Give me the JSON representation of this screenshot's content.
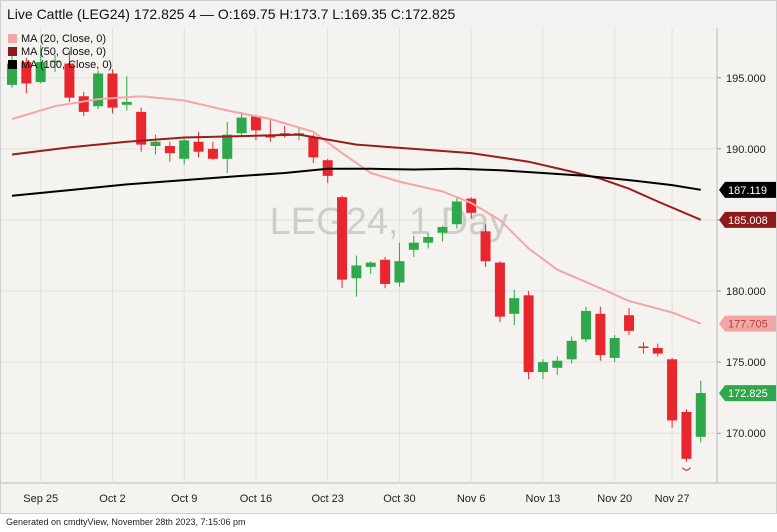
{
  "header": {
    "title": "Live Cattle (LEG24) 172.825 4 — O:169.75 H:173.7 L:169.35 C:172.825"
  },
  "footer": {
    "text": "Generated on cmdtyView, November 28th 2023, 7:15:06 pm"
  },
  "legend": [
    {
      "label": "MA (20, Close, 0)",
      "color": "#f2a6a6"
    },
    {
      "label": "MA (50, Close, 0)",
      "color": "#8b1a1a"
    },
    {
      "label": "MA (100, Close, 0)",
      "color": "#000000"
    }
  ],
  "colors": {
    "up": "#2ea84a",
    "down": "#e8262d",
    "ma20": "#f2a6a6",
    "ma50": "#9b1c1c",
    "ma100": "#000000",
    "background": "#f5f3ef"
  },
  "chart_data": {
    "type": "candlestick",
    "title": "Live Cattle (LEG24) 172.825 4 — O:169.75 H:173.7 L:169.35 C:172.825",
    "watermark": "LEG24, 1 Day",
    "ylim": [
      166.5,
      198.5
    ],
    "y_ticks": [
      "195.000",
      "190.000",
      "185.000",
      "180.000",
      "175.000",
      "170.000"
    ],
    "y_tick_values": [
      195,
      190,
      185,
      180,
      175,
      170
    ],
    "x_tick_labels": [
      {
        "label": "Sep 25",
        "index": 2
      },
      {
        "label": "Oct 2",
        "index": 7
      },
      {
        "label": "Oct 9",
        "index": 12
      },
      {
        "label": "Oct 16",
        "index": 17
      },
      {
        "label": "Oct 23",
        "index": 22
      },
      {
        "label": "Oct 30",
        "index": 27
      },
      {
        "label": "Nov 6",
        "index": 32
      },
      {
        "label": "Nov 13",
        "index": 37
      },
      {
        "label": "Nov 20",
        "index": 42
      },
      {
        "label": "Nov 27",
        "index": 46
      }
    ],
    "candles": [
      {
        "o": 194.5,
        "h": 197.0,
        "l": 194.3,
        "c": 196.0
      },
      {
        "o": 196.1,
        "h": 196.4,
        "l": 193.9,
        "c": 194.6
      },
      {
        "o": 194.7,
        "h": 197.3,
        "l": 194.6,
        "c": 196.1
      },
      {
        "o": 196.1,
        "h": 196.6,
        "l": 195.4,
        "c": 196.2
      },
      {
        "o": 196.0,
        "h": 196.9,
        "l": 193.3,
        "c": 193.6
      },
      {
        "o": 193.7,
        "h": 194.0,
        "l": 192.3,
        "c": 192.6
      },
      {
        "o": 193.0,
        "h": 195.5,
        "l": 192.8,
        "c": 195.3
      },
      {
        "o": 195.3,
        "h": 195.6,
        "l": 192.5,
        "c": 192.9
      },
      {
        "o": 193.1,
        "h": 195.1,
        "l": 192.7,
        "c": 193.3
      },
      {
        "o": 192.6,
        "h": 192.9,
        "l": 189.8,
        "c": 190.3
      },
      {
        "o": 190.2,
        "h": 191.0,
        "l": 189.6,
        "c": 190.5
      },
      {
        "o": 190.2,
        "h": 190.5,
        "l": 189.1,
        "c": 189.7
      },
      {
        "o": 189.3,
        "h": 190.8,
        "l": 188.9,
        "c": 190.6
      },
      {
        "o": 190.5,
        "h": 191.2,
        "l": 189.4,
        "c": 189.8
      },
      {
        "o": 190.0,
        "h": 190.5,
        "l": 189.2,
        "c": 189.3
      },
      {
        "o": 189.3,
        "h": 191.9,
        "l": 188.3,
        "c": 191.0
      },
      {
        "o": 191.1,
        "h": 192.6,
        "l": 190.9,
        "c": 192.2
      },
      {
        "o": 192.3,
        "h": 192.4,
        "l": 190.6,
        "c": 191.3
      },
      {
        "o": 191.0,
        "h": 192.0,
        "l": 190.5,
        "c": 190.8
      },
      {
        "o": 191.1,
        "h": 191.6,
        "l": 190.8,
        "c": 191.0
      },
      {
        "o": 191.0,
        "h": 191.5,
        "l": 190.6,
        "c": 191.1
      },
      {
        "o": 190.8,
        "h": 191.0,
        "l": 189.0,
        "c": 189.4
      },
      {
        "o": 189.2,
        "h": 189.3,
        "l": 187.6,
        "c": 188.1
      },
      {
        "o": 186.6,
        "h": 186.7,
        "l": 180.2,
        "c": 180.8
      },
      {
        "o": 180.9,
        "h": 182.5,
        "l": 179.6,
        "c": 181.8
      },
      {
        "o": 181.7,
        "h": 182.1,
        "l": 181.2,
        "c": 182.0
      },
      {
        "o": 182.2,
        "h": 182.4,
        "l": 180.2,
        "c": 180.5
      },
      {
        "o": 180.6,
        "h": 183.4,
        "l": 180.3,
        "c": 182.1
      },
      {
        "o": 182.9,
        "h": 183.9,
        "l": 182.4,
        "c": 183.4
      },
      {
        "o": 183.4,
        "h": 184.1,
        "l": 183.0,
        "c": 183.8
      },
      {
        "o": 184.1,
        "h": 184.6,
        "l": 183.5,
        "c": 184.5
      },
      {
        "o": 184.7,
        "h": 186.6,
        "l": 184.4,
        "c": 186.3
      },
      {
        "o": 186.5,
        "h": 186.6,
        "l": 185.1,
        "c": 185.5
      },
      {
        "o": 184.2,
        "h": 184.7,
        "l": 181.7,
        "c": 182.1
      },
      {
        "o": 182.0,
        "h": 182.1,
        "l": 177.8,
        "c": 178.2
      },
      {
        "o": 178.4,
        "h": 180.1,
        "l": 177.6,
        "c": 179.5
      },
      {
        "o": 179.7,
        "h": 180.0,
        "l": 173.8,
        "c": 174.3
      },
      {
        "o": 174.3,
        "h": 175.2,
        "l": 173.8,
        "c": 175.0
      },
      {
        "o": 174.6,
        "h": 175.4,
        "l": 174.1,
        "c": 175.1
      },
      {
        "o": 175.2,
        "h": 176.8,
        "l": 174.9,
        "c": 176.5
      },
      {
        "o": 176.6,
        "h": 178.9,
        "l": 176.4,
        "c": 178.6
      },
      {
        "o": 178.4,
        "h": 178.9,
        "l": 175.1,
        "c": 175.5
      },
      {
        "o": 175.3,
        "h": 176.9,
        "l": 175.0,
        "c": 176.7
      },
      {
        "o": 178.3,
        "h": 178.8,
        "l": 176.9,
        "c": 177.2
      },
      {
        "o": 176.1,
        "h": 176.4,
        "l": 175.6,
        "c": 176.0
      },
      {
        "o": 176.0,
        "h": 176.3,
        "l": 175.4,
        "c": 175.6
      },
      {
        "o": 175.2,
        "h": 175.3,
        "l": 170.4,
        "c": 170.9
      },
      {
        "o": 171.5,
        "h": 171.7,
        "l": 168.0,
        "c": 168.2
      },
      {
        "o": 169.75,
        "h": 173.7,
        "l": 169.35,
        "c": 172.825
      }
    ],
    "series": [
      {
        "name": "MA (20, Close, 0)",
        "color": "#f2a6a6",
        "values": [
          [
            0,
            192.1
          ],
          [
            3,
            193.0
          ],
          [
            6,
            193.5
          ],
          [
            9,
            193.7
          ],
          [
            12,
            193.4
          ],
          [
            15,
            192.7
          ],
          [
            18,
            192.1
          ],
          [
            21,
            191.2
          ],
          [
            23,
            189.7
          ],
          [
            25,
            188.3
          ],
          [
            27,
            187.7
          ],
          [
            30,
            187.0
          ],
          [
            32,
            186.2
          ],
          [
            34,
            185.0
          ],
          [
            36,
            183.0
          ],
          [
            38,
            181.5
          ],
          [
            41,
            180.2
          ],
          [
            43,
            179.3
          ],
          [
            46,
            178.5
          ],
          [
            48,
            177.705
          ]
        ]
      },
      {
        "name": "MA (50, Close, 0)",
        "color": "#9b1c1c",
        "values": [
          [
            0,
            189.6
          ],
          [
            4,
            190.1
          ],
          [
            8,
            190.5
          ],
          [
            12,
            190.8
          ],
          [
            16,
            190.9
          ],
          [
            20,
            191.0
          ],
          [
            24,
            190.3
          ],
          [
            28,
            190.0
          ],
          [
            32,
            189.7
          ],
          [
            36,
            189.1
          ],
          [
            39,
            188.4
          ],
          [
            41,
            187.9
          ],
          [
            43,
            187.2
          ],
          [
            45,
            186.3
          ],
          [
            48,
            185.008
          ]
        ]
      },
      {
        "name": "MA (100, Close, 0)",
        "color": "#000000",
        "values": [
          [
            0,
            186.7
          ],
          [
            4,
            187.1
          ],
          [
            8,
            187.5
          ],
          [
            12,
            187.8
          ],
          [
            16,
            188.1
          ],
          [
            19,
            188.3
          ],
          [
            22,
            188.6
          ],
          [
            25,
            188.6
          ],
          [
            28,
            188.55
          ],
          [
            31,
            188.6
          ],
          [
            34,
            188.5
          ],
          [
            37,
            188.3
          ],
          [
            40,
            188.1
          ],
          [
            43,
            187.8
          ],
          [
            46,
            187.45
          ],
          [
            48,
            187.119
          ]
        ]
      }
    ],
    "price_labels": [
      {
        "value": 187.119,
        "text": "187.119",
        "color": "#000000"
      },
      {
        "value": 185.008,
        "text": "185.008",
        "color": "#8b1a1a"
      },
      {
        "value": 177.705,
        "text": "177.705",
        "color": "#f2a6a6"
      },
      {
        "value": 172.825,
        "text": "172.825",
        "color": "#2ea84a"
      }
    ]
  }
}
